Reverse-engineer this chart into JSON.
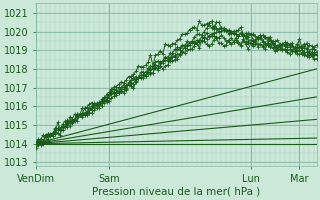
{
  "title": "",
  "xlabel": "Pression niveau de la mer( hPa )",
  "bg_color": "#cce8d8",
  "plot_bg_color": "#cce8d8",
  "grid_color_fine": "#a8cfc0",
  "grid_color_major": "#88b8a8",
  "line_color": "#1a5c1a",
  "ylim": [
    1012.8,
    1021.5
  ],
  "yticks": [
    1013,
    1014,
    1015,
    1016,
    1017,
    1018,
    1019,
    1020,
    1021
  ],
  "xtick_labels": [
    "VenDim",
    "Sam",
    "Lun",
    "Mar"
  ],
  "xtick_positions": [
    0,
    30,
    88,
    108
  ],
  "total_points": 116,
  "font_size": 7,
  "xlabel_fontsize": 7.5
}
